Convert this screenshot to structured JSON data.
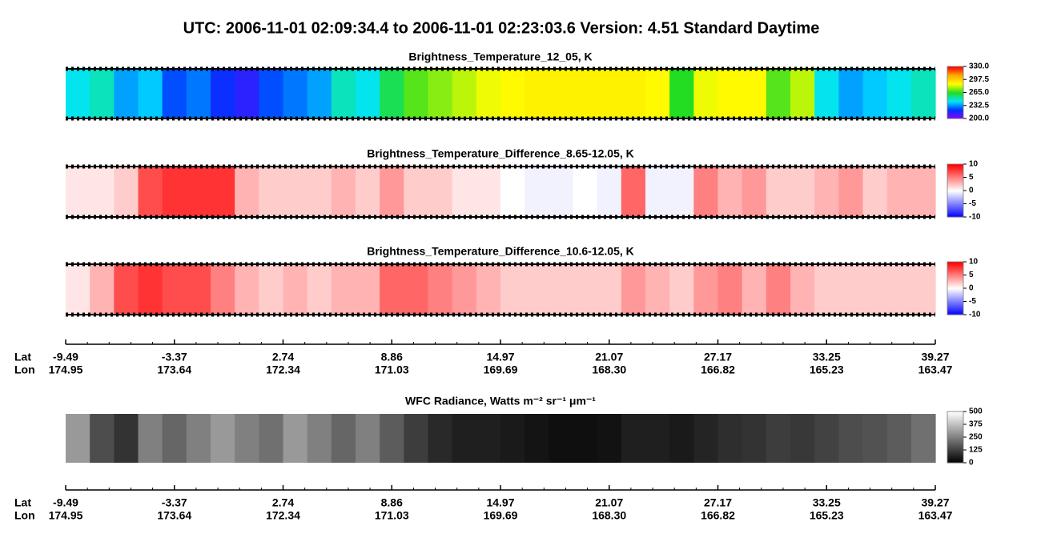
{
  "title": "UTC:  2006-11-01   02:09:34.4  to  2006-11-01   02:23:03.6    Version: 4.51  Standard Daytime",
  "chart_data": [
    {
      "type": "heatmap",
      "title": "Brightness_Temperature_12_05, K",
      "colors": [
        "#8a00ff",
        "#0033ff",
        "#00e5ff",
        "#22dd22",
        "#ffff00",
        "#ffaa00",
        "#ff0000"
      ],
      "clim": [
        200,
        330
      ],
      "cticks": [
        {
          "value": 200,
          "label": "200.0"
        },
        {
          "value": 232.5,
          "label": "232.5"
        },
        {
          "value": 265,
          "label": "265.0"
        },
        {
          "value": 297.5,
          "label": "297.5"
        },
        {
          "value": 330,
          "label": "330.0"
        }
      ],
      "values": [
        245,
        250,
        235,
        240,
        225,
        230,
        220,
        215,
        225,
        230,
        235,
        250,
        245,
        260,
        270,
        275,
        280,
        285,
        288,
        290,
        290,
        290,
        290,
        290,
        288,
        265,
        285,
        288,
        288,
        270,
        280,
        245,
        235,
        240,
        245,
        250
      ]
    },
    {
      "type": "heatmap",
      "title": "Brightness_Temperature_Difference_8.65-12.05, K",
      "colors": [
        "#0000ff",
        "#ffffff",
        "#ff0000"
      ],
      "clim": [
        -10,
        10
      ],
      "cticks": [
        -10,
        -5,
        0,
        5,
        10
      ],
      "values": [
        1,
        1,
        2,
        7,
        8,
        8,
        8,
        3,
        2,
        2,
        2,
        3,
        2,
        4,
        2,
        2,
        1,
        1,
        0,
        -0.5,
        -0.5,
        0,
        -0.5,
        6,
        -0.5,
        -0.5,
        5,
        3,
        4,
        2,
        2,
        3,
        4,
        2,
        3,
        3
      ]
    },
    {
      "type": "heatmap",
      "title": "Brightness_Temperature_Difference_10.6-12.05, K",
      "colors": [
        "#0000ff",
        "#ffffff",
        "#ff0000"
      ],
      "clim": [
        -10,
        10
      ],
      "cticks": [
        -10,
        -5,
        0,
        5,
        10
      ],
      "values": [
        1,
        3,
        7,
        8,
        7,
        7,
        5,
        3,
        2,
        3,
        2,
        3,
        3,
        6,
        6,
        5,
        4,
        3,
        2,
        2,
        2,
        2,
        2,
        4,
        3,
        2,
        4,
        5,
        3,
        5,
        3,
        2,
        2,
        2,
        2,
        2
      ]
    },
    {
      "type": "heatmap",
      "title": "WFC Radiance, Watts m⁻² sr⁻¹ μm⁻¹",
      "colors": [
        "#000000",
        "#ffffff"
      ],
      "clim": [
        0,
        500
      ],
      "cticks": [
        0,
        125,
        250,
        375,
        500
      ],
      "values": [
        300,
        150,
        100,
        250,
        200,
        250,
        300,
        250,
        220,
        300,
        250,
        200,
        250,
        180,
        120,
        80,
        60,
        60,
        50,
        40,
        30,
        30,
        35,
        60,
        60,
        50,
        70,
        90,
        100,
        120,
        110,
        130,
        150,
        160,
        180,
        220
      ]
    }
  ],
  "track_axis": {
    "lat_label": "Lat",
    "lon_label": "Lon",
    "lat": [
      -9.49,
      -3.37,
      2.74,
      8.86,
      14.97,
      21.07,
      27.17,
      33.25,
      39.27
    ],
    "lon": [
      174.95,
      173.64,
      172.34,
      171.03,
      169.69,
      {
        "value": 168.3,
        "label": "168.30"
      },
      166.82,
      165.23,
      163.47
    ]
  }
}
